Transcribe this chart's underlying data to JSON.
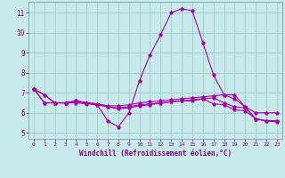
{
  "xlabel": "Windchill (Refroidissement éolien,°C)",
  "bg_color": "#c8eaea",
  "grid_color": "#a0cccc",
  "line_color": "#aa00aa",
  "x_ticks": [
    0,
    1,
    2,
    3,
    4,
    5,
    6,
    7,
    8,
    9,
    10,
    11,
    12,
    13,
    14,
    15,
    16,
    17,
    18,
    19,
    20,
    21,
    22,
    23
  ],
  "y_ticks": [
    5,
    6,
    7,
    8,
    9,
    10,
    11
  ],
  "ylim": [
    4.7,
    11.55
  ],
  "xlim": [
    -0.5,
    23.5
  ],
  "lines": [
    {
      "x": [
        0,
        1,
        2,
        3,
        4,
        5,
        6,
        7,
        8,
        9,
        10,
        11,
        12,
        13,
        14,
        15,
        16,
        17,
        18,
        19,
        20,
        21,
        22,
        23
      ],
      "y": [
        7.2,
        6.9,
        6.5,
        6.5,
        6.6,
        6.5,
        6.4,
        5.6,
        5.3,
        6.0,
        7.6,
        8.9,
        9.9,
        11.0,
        11.2,
        11.1,
        9.5,
        7.9,
        6.9,
        6.9,
        6.3,
        5.7,
        5.6,
        5.6
      ]
    },
    {
      "x": [
        0,
        1,
        2,
        3,
        4,
        5,
        6,
        7,
        8,
        9,
        10,
        11,
        12,
        13,
        14,
        15,
        16,
        17,
        18,
        19,
        20,
        21,
        22,
        23
      ],
      "y": [
        7.2,
        6.9,
        6.5,
        6.5,
        6.6,
        6.5,
        6.45,
        6.35,
        6.35,
        6.4,
        6.5,
        6.55,
        6.6,
        6.65,
        6.7,
        6.75,
        6.8,
        6.85,
        6.9,
        6.7,
        6.3,
        6.0,
        6.0,
        6.0
      ]
    },
    {
      "x": [
        0,
        1,
        2,
        3,
        4,
        5,
        6,
        7,
        8,
        9,
        10,
        11,
        12,
        13,
        14,
        15,
        16,
        17,
        18,
        19,
        20,
        21,
        22,
        23
      ],
      "y": [
        7.2,
        6.5,
        6.5,
        6.5,
        6.55,
        6.5,
        6.45,
        6.3,
        6.25,
        6.3,
        6.4,
        6.45,
        6.5,
        6.55,
        6.6,
        6.65,
        6.7,
        6.75,
        6.5,
        6.3,
        6.25,
        5.7,
        5.6,
        5.6
      ]
    },
    {
      "x": [
        0,
        1,
        2,
        3,
        4,
        5,
        6,
        7,
        8,
        9,
        10,
        11,
        12,
        13,
        14,
        15,
        16,
        17,
        18,
        19,
        20,
        21,
        22,
        23
      ],
      "y": [
        7.2,
        6.5,
        6.5,
        6.5,
        6.5,
        6.45,
        6.4,
        6.3,
        6.2,
        6.25,
        6.35,
        6.4,
        6.5,
        6.55,
        6.6,
        6.6,
        6.7,
        6.45,
        6.4,
        6.15,
        6.1,
        5.7,
        5.6,
        5.55
      ]
    }
  ]
}
